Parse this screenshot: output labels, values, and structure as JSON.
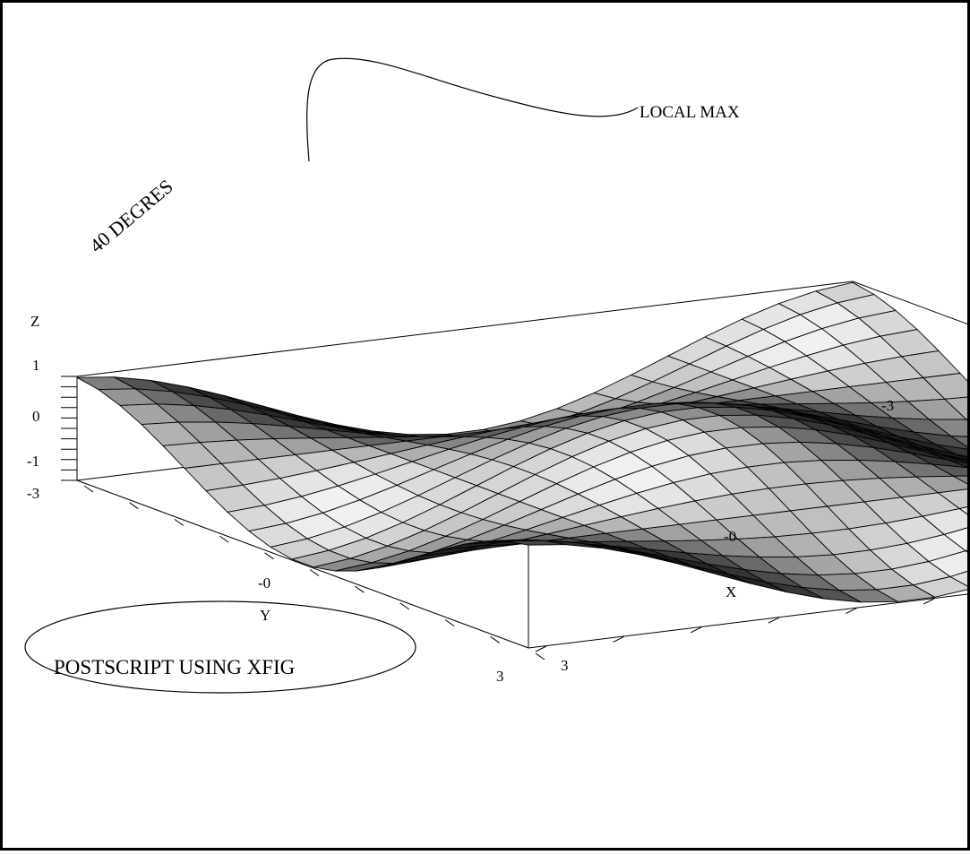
{
  "chart_data": {
    "type": "surface",
    "function": "z = cos(x) * cos(y)",
    "x_range": [
      -3,
      3
    ],
    "y_range": [
      -3,
      3
    ],
    "z_range": [
      -1,
      1
    ],
    "grid_divisions": 21,
    "view_elevation_deg": 40,
    "shading": "grayscale",
    "axes": {
      "x": {
        "label": "X",
        "ticks": [
          "-3",
          "-0",
          "3"
        ]
      },
      "y": {
        "label": "Y",
        "ticks": [
          "-3",
          "-0",
          "3"
        ]
      },
      "z": {
        "label": "Z",
        "ticks": [
          "1",
          "0",
          "-1"
        ]
      }
    },
    "annotations": {
      "angle": "40 DEGRES",
      "local_max": "LOCAL MAX",
      "tool": "POSTSCRIPT  USING  XFIG"
    }
  }
}
